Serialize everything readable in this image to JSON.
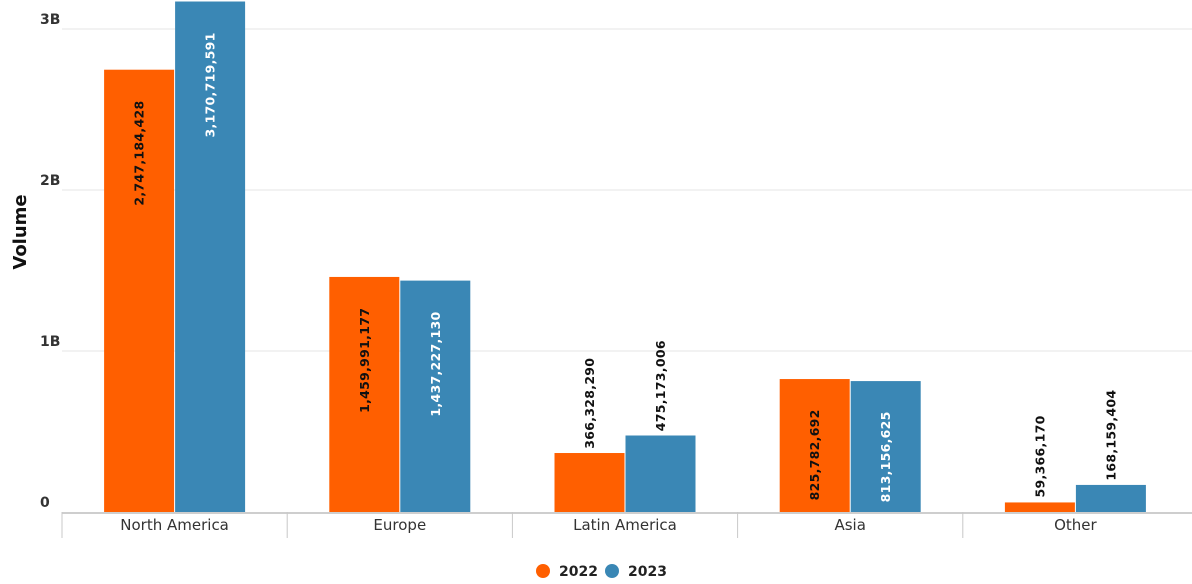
{
  "chart_data": {
    "type": "bar",
    "title": "",
    "xlabel": "",
    "ylabel": "Volume",
    "categories": [
      "North America",
      "Europe",
      "Latin America",
      "Asia",
      "Other"
    ],
    "series": [
      {
        "name": "2022",
        "color": "#ff5f00",
        "values": [
          2747184428,
          1459991177,
          366328290,
          825782692,
          59366170
        ],
        "labels": [
          "2,747,184,428",
          "1,459,991,177",
          "366,328,290",
          "825,782,692",
          "59,366,170"
        ]
      },
      {
        "name": "2023",
        "color": "#3a87b5",
        "values": [
          3170719591,
          1437227130,
          475173006,
          813156625,
          168159404
        ],
        "labels": [
          "3,170,719,591",
          "1,437,227,130",
          "475,173,006",
          "813,156,625",
          "168,159,404"
        ]
      }
    ],
    "ylim": [
      0,
      3000000000
    ],
    "yticks": [
      0,
      1000000000,
      2000000000,
      3000000000
    ],
    "ytick_labels": [
      "0",
      "1B",
      "2B",
      "3B"
    ],
    "grid": true,
    "legend_position": "bottom-center"
  }
}
